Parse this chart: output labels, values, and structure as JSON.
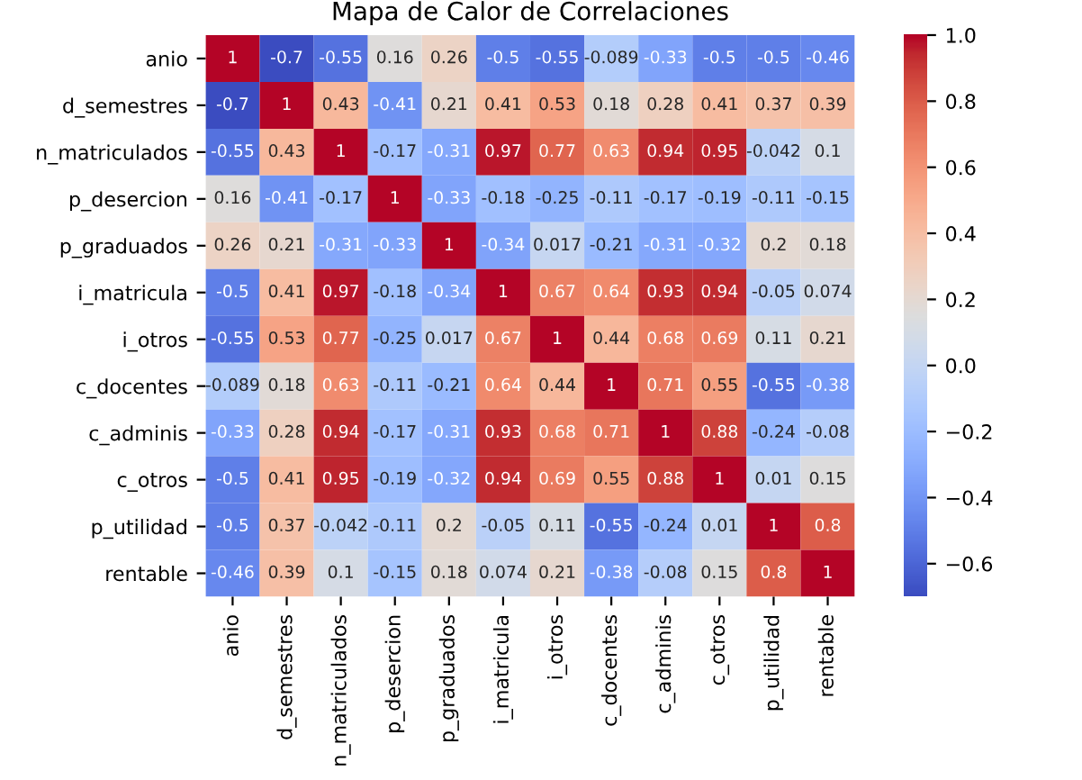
{
  "chart_data": {
    "type": "heatmap",
    "title": "Mapa de Calor de Correlaciones",
    "categories": [
      "anio",
      "d_semestres",
      "n_matriculados",
      "p_desercion",
      "p_graduados",
      "i_matricula",
      "i_otros",
      "c_docentes",
      "c_adminis",
      "c_otros",
      "p_utilidad",
      "rentable"
    ],
    "y_categories": [
      "anio",
      "d_semestres",
      "n_matriculados",
      "p_desercion",
      "p_graduados",
      "i_matricula",
      "i_otros",
      "c_docentes",
      "c_adminis",
      "c_otros",
      "p_utilidad",
      "rentable"
    ],
    "cells": [
      [
        1,
        -0.7,
        -0.55,
        0.16,
        0.26,
        -0.5,
        -0.55,
        -0.089,
        -0.33,
        -0.5,
        -0.5,
        -0.46
      ],
      [
        -0.7,
        1,
        0.43,
        -0.41,
        0.21,
        0.41,
        0.53,
        0.18,
        0.28,
        0.41,
        0.37,
        0.39
      ],
      [
        -0.55,
        0.43,
        1,
        -0.17,
        -0.31,
        0.97,
        0.77,
        0.63,
        0.94,
        0.95,
        -0.042,
        0.1
      ],
      [
        0.16,
        -0.41,
        -0.17,
        1,
        -0.33,
        -0.18,
        -0.25,
        -0.11,
        -0.17,
        -0.19,
        -0.11,
        -0.15
      ],
      [
        0.26,
        0.21,
        -0.31,
        -0.33,
        1,
        -0.34,
        0.017,
        -0.21,
        -0.31,
        -0.32,
        0.2,
        0.18
      ],
      [
        -0.5,
        0.41,
        0.97,
        -0.18,
        -0.34,
        1,
        0.67,
        0.64,
        0.93,
        0.94,
        -0.05,
        0.074
      ],
      [
        -0.55,
        0.53,
        0.77,
        -0.25,
        0.017,
        0.67,
        1,
        0.44,
        0.68,
        0.69,
        0.11,
        0.21
      ],
      [
        -0.089,
        0.18,
        0.63,
        -0.11,
        -0.21,
        0.64,
        0.44,
        1,
        0.71,
        0.55,
        -0.55,
        -0.38
      ],
      [
        -0.33,
        0.28,
        0.94,
        -0.17,
        -0.31,
        0.93,
        0.68,
        0.71,
        1,
        0.88,
        -0.24,
        -0.08
      ],
      [
        -0.5,
        0.41,
        0.95,
        -0.19,
        -0.32,
        0.94,
        0.69,
        0.55,
        0.88,
        1,
        0.01,
        0.15
      ],
      [
        -0.5,
        0.37,
        -0.042,
        -0.11,
        0.2,
        -0.05,
        0.11,
        -0.55,
        -0.24,
        0.01,
        1,
        0.8
      ],
      [
        -0.46,
        0.39,
        0.1,
        -0.15,
        0.18,
        0.074,
        0.21,
        -0.38,
        -0.08,
        0.15,
        0.8,
        1
      ]
    ],
    "data_labels": true,
    "clim": [
      -0.7,
      1.0
    ],
    "cticks": [
      {
        "value": -0.6,
        "label": "−0.6"
      },
      {
        "value": -0.4,
        "label": "−0.4"
      },
      {
        "value": -0.2,
        "label": "−0.2"
      },
      {
        "value": 0.0,
        "label": "0.0"
      },
      {
        "value": 0.2,
        "label": "0.2"
      },
      {
        "value": 0.4,
        "label": "0.4"
      },
      {
        "value": 0.6,
        "label": "0.6"
      },
      {
        "value": 0.8,
        "label": "0.8"
      },
      {
        "value": 1.0,
        "label": "1.0"
      }
    ]
  }
}
